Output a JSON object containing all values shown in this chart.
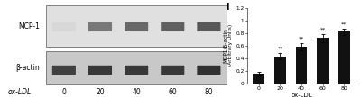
{
  "bar_values": [
    0.15,
    0.43,
    0.58,
    0.72,
    0.82
  ],
  "bar_errors": [
    0.03,
    0.05,
    0.06,
    0.06,
    0.05
  ],
  "bar_color": "#111111",
  "categories": [
    "0",
    "20",
    "40",
    "60",
    "80"
  ],
  "xlabel": "ox-LDL",
  "ylabel_line1": "MCP1/β-actin",
  "ylabel_line2": "(Arbitrary Units)",
  "ylim": [
    0,
    1.2
  ],
  "yticks": [
    0.0,
    0.2,
    0.4,
    0.6,
    0.8,
    1.0,
    1.2
  ],
  "panel_label": "I",
  "sig_label": "**",
  "background_color": "#ffffff",
  "label_mcp1": "MCP-1",
  "label_bactin": "β-actin",
  "blot_xlabel": "ox-LDL",
  "blot_xticks": [
    "0",
    "20",
    "40",
    "60",
    "80"
  ],
  "mcp1_box_color": "#e0e0e0",
  "bactin_box_color": "#c8c8c8",
  "band_colors_mcp1": [
    "#d8d8d8",
    "#787878",
    "#686868",
    "#606060",
    "#585858"
  ],
  "band_colors_bactin": [
    "#404040",
    "#383838",
    "#383838",
    "#383838",
    "#303030"
  ]
}
